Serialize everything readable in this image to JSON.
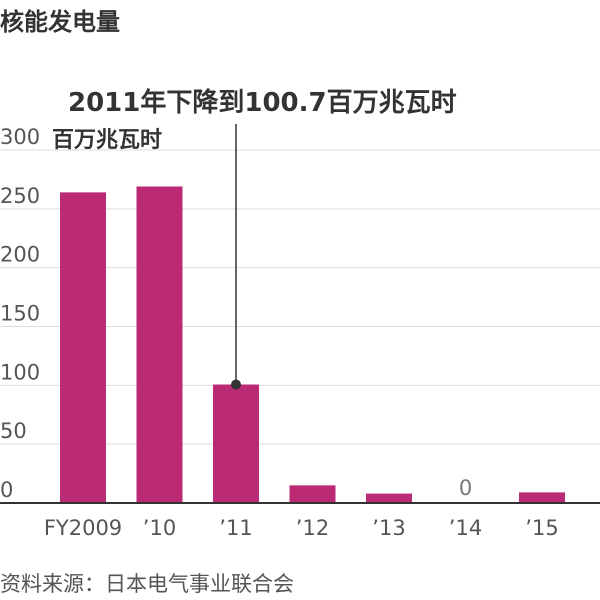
{
  "title": "核能发电量",
  "source": "资料来源：日本电气事业联合会",
  "colors": {
    "bar": "#bb2b75",
    "grid": "#dddddd",
    "axis": "#333333",
    "annotation": "#333333"
  },
  "chart_data": {
    "type": "bar",
    "title": "核能发电量",
    "unit_label": "百万兆瓦时",
    "categories": [
      "FY2009",
      "’10",
      "’11",
      "’12",
      "’13",
      "’14",
      "’15"
    ],
    "values": [
      264,
      269,
      100.7,
      15,
      8,
      0,
      9
    ],
    "value_labels": [
      "",
      "",
      "",
      "",
      "",
      "0",
      ""
    ],
    "ylim": [
      0,
      300
    ],
    "yticks": [
      0,
      50,
      100,
      150,
      200,
      250,
      300
    ],
    "grid": true,
    "annotation": {
      "category": "’11",
      "value": 100.7,
      "text": "2011年下降到100.7百万兆瓦时"
    }
  }
}
